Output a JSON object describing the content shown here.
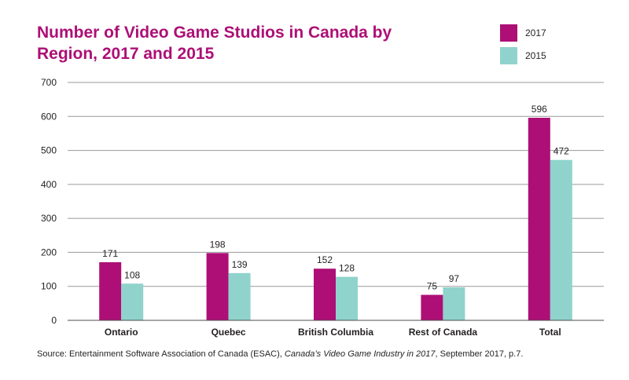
{
  "chart_data": {
    "type": "bar",
    "title": "Number of Video Game Studios in Canada by Region, 2017 and 2015",
    "categories": [
      "Ontario",
      "Quebec",
      "British Columbia",
      "Rest of Canada",
      "Total"
    ],
    "series": [
      {
        "name": "2017",
        "color": "#ad0f76",
        "values": [
          171,
          198,
          152,
          75,
          596
        ]
      },
      {
        "name": "2015",
        "color": "#8fd3cc",
        "values": [
          108,
          139,
          128,
          97,
          472
        ]
      }
    ],
    "ylim": [
      0,
      700
    ],
    "yticks": [
      0,
      100,
      200,
      300,
      400,
      500,
      600,
      700
    ],
    "grid": true,
    "legend": "top-right",
    "xlabel": "",
    "ylabel": ""
  },
  "source": {
    "prefix": "Source: Entertainment Software Association of Canada (ESAC), ",
    "italic": "Canada’s Video Game Industry in 2017",
    "suffix": ", September 2017, p.7."
  }
}
